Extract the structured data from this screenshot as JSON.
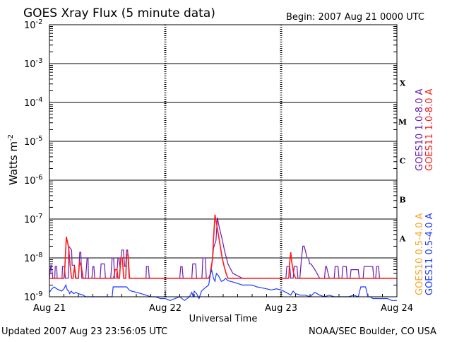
{
  "title": "GOES Xray Flux (5 minute data)",
  "begin": "Begin:  2007 Aug 21 0000 UTC",
  "updated": "Updated 2007 Aug 23 23:56:05 UTC",
  "source": "NOAA/SEC Boulder, CO USA",
  "colors": {
    "goes10_long": "#6a1bb0",
    "goes11_long": "#ff1a1a",
    "goes10_short": "#f5a623",
    "goes11_short": "#1f3bff"
  },
  "chart_data": {
    "type": "line",
    "title": "GOES Xray Flux (5 minute data)",
    "xlabel": "Universal Time",
    "ylabel": "Watts m",
    "ylabel_sup": "-2",
    "yscale": "log",
    "ylim": [
      1e-09,
      0.01
    ],
    "xlim": [
      0,
      72
    ],
    "grid": true,
    "x_ticks": [
      {
        "h": 0,
        "label": "Aug 21"
      },
      {
        "h": 24,
        "label": "Aug 22"
      },
      {
        "h": 48,
        "label": "Aug 23"
      },
      {
        "h": 72,
        "label": "Aug 24"
      }
    ],
    "y_ticks": [
      {
        "exp": -2,
        "label": "10",
        "sup": "-2"
      },
      {
        "exp": -3,
        "label": "10",
        "sup": "-3"
      },
      {
        "exp": -4,
        "label": "10",
        "sup": "-4"
      },
      {
        "exp": -5,
        "label": "10",
        "sup": "-5"
      },
      {
        "exp": -6,
        "label": "10",
        "sup": "-6"
      },
      {
        "exp": -7,
        "label": "10",
        "sup": "-7"
      },
      {
        "exp": -8,
        "label": "10",
        "sup": "-8"
      },
      {
        "exp": -9,
        "label": "10",
        "sup": "-9"
      }
    ],
    "flare_classes": [
      {
        "label": "X",
        "exp": -3.5
      },
      {
        "label": "M",
        "exp": -4.5
      },
      {
        "label": "C",
        "exp": -5.5
      },
      {
        "label": "B",
        "exp": -6.5
      },
      {
        "label": "A",
        "exp": -7.5
      }
    ],
    "legend": [
      {
        "name": "GOES10 1.0-8.0 A",
        "color": "#6a1bb0"
      },
      {
        "name": "GOES11 1.0-8.0 A",
        "color": "#ff1a1a"
      },
      {
        "name": "GOES10 0.5-4.0 A",
        "color": "#f5a623"
      },
      {
        "name": "GOES11 0.5-4.0 A",
        "color": "#1f3bff"
      }
    ],
    "series": [
      {
        "name": "GOES10 1.0-8.0 A",
        "color": "#6a1bb0",
        "x": [
          0,
          0.3,
          0.4,
          0.7,
          1.1,
          1.2,
          1.5,
          1.6,
          2.6,
          2.7,
          3.1,
          3.3,
          3.9,
          4.0,
          4.6,
          4.7,
          5.2,
          5.4,
          6.0,
          6.3,
          6.5,
          6.7,
          7.5,
          7.8,
          8.0,
          8.1,
          8.8,
          9.0,
          9.2,
          9.4,
          10.5,
          10.7,
          11.4,
          11.6,
          12.7,
          13.0,
          13.3,
          13.5,
          13.9,
          14.2,
          14.4,
          14.6,
          15.0,
          15.3,
          15.6,
          15.8,
          16.0,
          16.2,
          16.5,
          17.0,
          20.0,
          20.1,
          20.5,
          20.7,
          24.0,
          27.0,
          27.2,
          27.5,
          27.7,
          29.5,
          29.7,
          30.3,
          30.5,
          31.6,
          31.8,
          32.3,
          32.5,
          33.2,
          33.4,
          33.8,
          34.0,
          34.5,
          34.8,
          35.2,
          35.8,
          36.3,
          37.0,
          38.0,
          40.0,
          48.0,
          49.0,
          49.2,
          49.8,
          50.0,
          50.5,
          50.7,
          51.3,
          51.5,
          51.9,
          52.2,
          52.5,
          52.8,
          53.4,
          53.7,
          53.9,
          54.2,
          55.0,
          56.0,
          57.0,
          57.2,
          57.4,
          58.0,
          59.0,
          59.2,
          59.8,
          60.0,
          60.6,
          60.8,
          61.5,
          61.7,
          62.3,
          62.5,
          64.0,
          64.2,
          65.0,
          65.2,
          67.0,
          67.2,
          67.6,
          67.8,
          68.2,
          68.4,
          72.0
        ],
        "y": [
          3e-09,
          6.5e-09,
          6.5e-09,
          3e-09,
          3e-09,
          6e-09,
          6e-09,
          3e-09,
          3e-09,
          6e-09,
          6e-09,
          3e-09,
          3e-09,
          2e-08,
          1.6e-08,
          6.5e-09,
          6.5e-09,
          3e-09,
          3e-09,
          1.4e-08,
          1.4e-08,
          3e-09,
          3e-09,
          1e-08,
          1e-08,
          3e-09,
          3e-09,
          6e-09,
          6e-09,
          3e-09,
          3e-09,
          7e-09,
          7e-09,
          3e-09,
          3e-09,
          1e-08,
          1e-08,
          3e-09,
          3e-09,
          1e-08,
          1e-08,
          6e-09,
          1.6e-08,
          1.6e-08,
          6e-09,
          6e-09,
          1.6e-08,
          1.6e-08,
          3e-09,
          3e-09,
          3e-09,
          6e-09,
          6e-09,
          3e-09,
          3e-09,
          3e-09,
          6e-09,
          6e-09,
          3e-09,
          3e-09,
          7e-09,
          7e-09,
          3e-09,
          3e-09,
          1e-08,
          1e-08,
          3e-09,
          3e-09,
          5e-09,
          9e-09,
          1.8e-08,
          2.8e-08,
          1.1e-07,
          6e-08,
          3e-08,
          1.5e-08,
          7e-09,
          4e-09,
          3e-09,
          3e-09,
          3e-09,
          6e-09,
          6e-09,
          3e-09,
          3e-09,
          6e-09,
          6e-09,
          3e-09,
          3e-09,
          9e-09,
          2e-08,
          2e-08,
          1e-08,
          1e-08,
          7e-09,
          7e-09,
          5e-09,
          3e-09,
          3e-09,
          6e-09,
          6e-09,
          3e-09,
          3e-09,
          6e-09,
          6e-09,
          3e-09,
          3e-09,
          6e-09,
          6e-09,
          3e-09,
          3e-09,
          5e-09,
          5e-09,
          3e-09,
          3e-09,
          6e-09,
          6e-09,
          3e-09,
          3e-09,
          6e-09,
          6e-09,
          3e-09,
          3e-09
        ]
      },
      {
        "name": "GOES11 1.0-8.0 A",
        "color": "#ff1a1a",
        "x": [
          0,
          3.0,
          3.2,
          3.5,
          4.0,
          4.3,
          4.6,
          4.9,
          5.2,
          5.5,
          6.0,
          6.2,
          6.6,
          7.0,
          8.0,
          12.0,
          13.3,
          13.6,
          14.0,
          14.2,
          14.5,
          14.8,
          15.1,
          15.4,
          15.8,
          16.0,
          16.3,
          16.6,
          17.0,
          20.0,
          24.0,
          30.0,
          33.0,
          33.4,
          33.8,
          34.0,
          34.3,
          34.6,
          35.0,
          35.4,
          35.8,
          36.2,
          36.6,
          37.0,
          40.0,
          48.0,
          49.6,
          49.8,
          50.0,
          50.2,
          50.6,
          51.0,
          52.0,
          56.0,
          60.0,
          64.0,
          68.0,
          72.0
        ],
        "y": [
          3e-09,
          3e-09,
          6e-09,
          3.5e-08,
          1.8e-08,
          6e-09,
          3e-09,
          3e-09,
          6e-09,
          3e-09,
          3e-09,
          8e-09,
          6e-09,
          3e-09,
          3e-09,
          3e-09,
          3e-09,
          5e-09,
          5e-09,
          3e-09,
          3e-09,
          1e-08,
          1e-08,
          3e-09,
          3e-09,
          1.2e-08,
          1.2e-08,
          3e-09,
          3e-09,
          3e-09,
          3e-09,
          3e-09,
          3e-09,
          4e-09,
          1e-08,
          3e-08,
          1.3e-07,
          8e-08,
          4e-08,
          2e-08,
          1e-08,
          6e-09,
          4e-09,
          3e-09,
          3e-09,
          3e-09,
          3e-09,
          8e-09,
          1.4e-08,
          8e-09,
          4e-09,
          3e-09,
          3e-09,
          3e-09,
          3e-09,
          3e-09,
          3e-09,
          3e-09
        ]
      },
      {
        "name": "GOES11 0.5-4.0 A",
        "color": "#1f3bff",
        "x": [
          0,
          0.5,
          1.0,
          1.5,
          2.0,
          2.5,
          3.0,
          3.4,
          3.7,
          4.0,
          4.2,
          4.5,
          5.0,
          5.5,
          6.0,
          7.0,
          7.5,
          8.0,
          9.0,
          10.0,
          11.0,
          12.0,
          13.0,
          13.2,
          13.5,
          14.0,
          15.0,
          16.0,
          16.5,
          17.0,
          18.0,
          19.0,
          20.0,
          21.0,
          22.0,
          23.0,
          24.0,
          25.0,
          26.0,
          27.0,
          28.0,
          29.0,
          29.5,
          29.8,
          30.0,
          30.5,
          31.0,
          31.5,
          32.0,
          32.5,
          33.0,
          33.3,
          33.6,
          34.0,
          34.3,
          34.6,
          35.0,
          35.3,
          35.6,
          36.0,
          36.5,
          37.0,
          38.0,
          39.0,
          40.0,
          41.0,
          42.0,
          43.0,
          44.0,
          45.0,
          46.0,
          47.0,
          48.0,
          48.5,
          49.0,
          49.5,
          50.0,
          50.5,
          51.0,
          52.0,
          53.0,
          54.0,
          55.0,
          56.0,
          57.0,
          58.0,
          59.0,
          60.0,
          61.0,
          62.0,
          63.0,
          64.0,
          64.5,
          64.6,
          65.5,
          66.0,
          66.5,
          67.0,
          68.0,
          69.0,
          70.0,
          71.0,
          72.0
        ],
        "y": [
          1.3e-09,
          1.6e-09,
          1.8e-09,
          1.6e-09,
          1.5e-09,
          1.4e-09,
          1.6e-09,
          2e-09,
          1.5e-09,
          1.4e-09,
          1.2e-09,
          1.4e-09,
          1.2e-09,
          1.3e-09,
          1.2e-09,
          1.1e-09,
          1e-09,
          1e-09,
          1e-09,
          1e-09,
          1e-09,
          1e-09,
          1e-09,
          1.8e-09,
          1.8e-09,
          1.8e-09,
          1.8e-09,
          1.8e-09,
          1.5e-09,
          1.4e-09,
          1.3e-09,
          1.2e-09,
          1.1e-09,
          1e-09,
          1e-09,
          9e-10,
          9e-10,
          8e-10,
          9e-10,
          1e-09,
          8e-10,
          1e-09,
          1.3e-09,
          1e-09,
          1.4e-09,
          1.2e-09,
          9e-10,
          1.4e-09,
          1.6e-09,
          1.8e-09,
          2e-09,
          3.5e-09,
          5e-09,
          3e-09,
          2.5e-09,
          4e-09,
          3.5e-09,
          3e-09,
          2.5e-09,
          2.6e-09,
          3e-09,
          2.6e-09,
          2.4e-09,
          2.2e-09,
          2e-09,
          2e-09,
          2e-09,
          1.8e-09,
          1.7e-09,
          1.6e-09,
          1.5e-09,
          1.6e-09,
          1.5e-09,
          1.4e-09,
          1.3e-09,
          1.2e-09,
          1.1e-09,
          1.4e-09,
          1.2e-09,
          1.1e-09,
          1.1e-09,
          1e-09,
          1.3e-09,
          1.1e-09,
          1e-09,
          1.1e-09,
          1e-09,
          1e-09,
          1e-09,
          1e-09,
          1.1e-09,
          1e-09,
          1.8e-09,
          1.8e-09,
          1.8e-09,
          1e-09,
          1e-09,
          9e-10,
          9e-10,
          9e-10,
          9e-10,
          8e-10,
          8e-10
        ]
      }
    ]
  }
}
